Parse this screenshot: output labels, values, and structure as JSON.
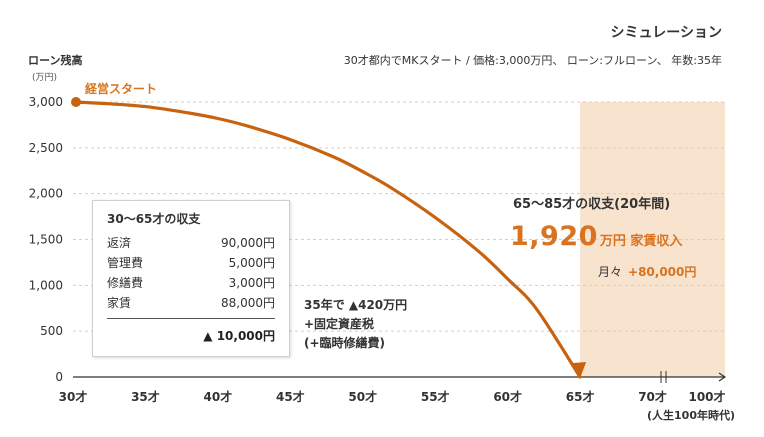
{
  "header": {
    "title": "シミュレーション",
    "conditions": "30才都内でMKスタート / 価格:3,000万円、 ローン:フルローン、 年数:35年"
  },
  "chart_data": {
    "type": "area",
    "ylabel": "ローン残高",
    "yunit": "(万円)",
    "ylim": [
      0,
      3000
    ],
    "yticks": [
      0,
      500,
      1000,
      1500,
      2000,
      2500,
      3000
    ],
    "ytick_labels": [
      "0",
      "500",
      "1,000",
      "1,500",
      "2,000",
      "2,500",
      "3,000"
    ],
    "xlim": [
      30,
      75
    ],
    "xticks": [
      30,
      35,
      40,
      45,
      50,
      55,
      60,
      65,
      70
    ],
    "xtick_labels": [
      "30才",
      "35才",
      "40才",
      "45才",
      "50才",
      "55才",
      "60才",
      "65才",
      "70才"
    ],
    "x_end_label": "100才",
    "x_end_sublabel": "(人生100年時代)",
    "series": [
      {
        "x": [
          30,
          32,
          35,
          38,
          40,
          42,
          45,
          48,
          50,
          52,
          55,
          58,
          60,
          62,
          65
        ],
        "values": [
          3000,
          2985,
          2950,
          2880,
          2820,
          2740,
          2590,
          2400,
          2240,
          2060,
          1740,
          1370,
          1070,
          740,
          0
        ]
      }
    ],
    "start_label": "経営スタート",
    "shaded_region": {
      "x_from": 65,
      "x_to": 75
    },
    "colors": {
      "line": "#c8620f",
      "shade": "#f8e3cf",
      "grid": "#cfcfcf",
      "accent": "#d9731f"
    }
  },
  "income_box": {
    "title": "30〜65才の収支",
    "rows": [
      {
        "label": "返済",
        "value": "90,000円"
      },
      {
        "label": "管理費",
        "value": "5,000円"
      },
      {
        "label": "修繕費",
        "value": "3,000円"
      },
      {
        "label": "家賃",
        "value": "88,000円"
      }
    ],
    "total": "▲ 10,000円"
  },
  "mid_note": {
    "line1": "35年で ▲420万円",
    "line2": "+固定資産税",
    "line3": "(+臨時修繕費)"
  },
  "retirement": {
    "title": "65〜85才の収支(20年間)",
    "amount": "1,920",
    "amount_unit": "万円 家賃収入",
    "monthly_label": "月々",
    "monthly_value": "+80,000円"
  }
}
